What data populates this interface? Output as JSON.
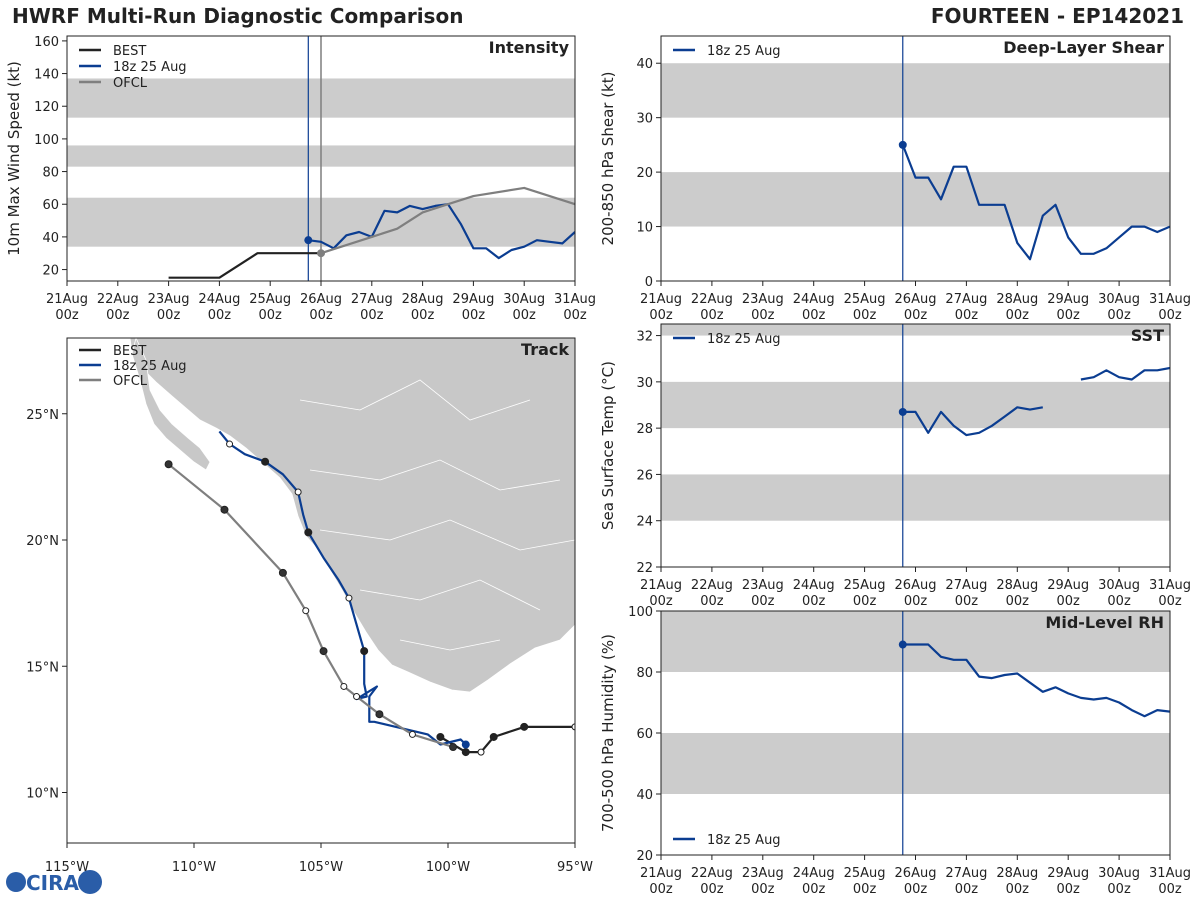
{
  "header": {
    "title": "HWRF Multi-Run Diagnostic Comparison",
    "storm": "FOURTEEN - EP142021"
  },
  "colors": {
    "best": "#222222",
    "run": "#0b3d91",
    "ofcl": "#7f7f7f",
    "band": "#cccccc",
    "land": "#c8c8c8"
  },
  "logo": {
    "text": "CIRA"
  },
  "time_ticks": [
    "21Aug\n00z",
    "22Aug\n00z",
    "23Aug\n00z",
    "24Aug\n00z",
    "25Aug\n00z",
    "26Aug\n00z",
    "27Aug\n00z",
    "28Aug\n00z",
    "29Aug\n00z",
    "30Aug\n00z",
    "31Aug\n00z"
  ],
  "chart_data": [
    {
      "id": "intensity",
      "type": "line",
      "title": "Intensity",
      "ylabel": "10m Max Wind Speed (kt)",
      "xlim": [
        0,
        10
      ],
      "ylim": [
        13,
        163
      ],
      "yticks": [
        20,
        40,
        60,
        80,
        100,
        120,
        140,
        160
      ],
      "bands": [
        [
          34,
          64
        ],
        [
          83,
          96
        ],
        [
          113,
          137
        ]
      ],
      "init_line": 4.75,
      "ofcl_init_line": 5.0,
      "legend": "top-left",
      "series": [
        {
          "name": "BEST",
          "color": "#222222",
          "x": [
            2,
            3,
            3.75,
            5
          ],
          "y": [
            15,
            15,
            30,
            30
          ]
        },
        {
          "name": "18z 25 Aug",
          "color": "#0b3d91",
          "marker_first": true,
          "x": [
            4.75,
            5,
            5.25,
            5.5,
            5.75,
            6,
            6.25,
            6.5,
            6.75,
            7,
            7.25,
            7.5,
            7.75,
            8,
            8.25,
            8.5,
            8.75,
            9,
            9.25,
            9.5,
            9.75,
            10
          ],
          "y": [
            38,
            37,
            33,
            41,
            43,
            40,
            56,
            55,
            59,
            57,
            59,
            60,
            48,
            33,
            33,
            27,
            32,
            34,
            38,
            37,
            36,
            43
          ]
        },
        {
          "name": "OFCL",
          "color": "#7f7f7f",
          "marker_first": true,
          "x": [
            5,
            5.5,
            6,
            6.5,
            7,
            7.5,
            8,
            9,
            10
          ],
          "y": [
            30,
            35,
            40,
            45,
            55,
            60,
            65,
            70,
            60
          ]
        }
      ]
    },
    {
      "id": "shear",
      "type": "line",
      "title": "Deep-Layer Shear",
      "ylabel": "200-850 hPa Shear (kt)",
      "xlim": [
        0,
        10
      ],
      "ylim": [
        0,
        45
      ],
      "yticks": [
        0,
        10,
        20,
        30,
        40
      ],
      "bands": [
        [
          10,
          20
        ],
        [
          30,
          40
        ]
      ],
      "init_line": 4.75,
      "legend": "top-left",
      "series": [
        {
          "name": "18z 25 Aug",
          "color": "#0b3d91",
          "marker_first": true,
          "x": [
            4.75,
            5,
            5.25,
            5.5,
            5.75,
            6,
            6.25,
            6.5,
            6.75,
            7,
            7.25,
            7.5,
            7.75,
            8,
            8.25,
            8.5,
            8.75,
            9,
            9.25,
            9.5,
            9.75,
            10
          ],
          "y": [
            25,
            19,
            19,
            15,
            21,
            21,
            14,
            14,
            14,
            7,
            4,
            12,
            14,
            8,
            5,
            5,
            6,
            8,
            10,
            10,
            9,
            10
          ]
        }
      ]
    },
    {
      "id": "sst",
      "type": "line",
      "title": "SST",
      "ylabel": "Sea Surface Temp (°C)",
      "xlim": [
        0,
        10
      ],
      "ylim": [
        22,
        32.5
      ],
      "yticks": [
        22,
        24,
        26,
        28,
        30,
        32
      ],
      "bands": [
        [
          24,
          26
        ],
        [
          28,
          30
        ],
        [
          32,
          32.5
        ]
      ],
      "init_line": 4.75,
      "legend": "top-left",
      "series": [
        {
          "name": "18z 25 Aug",
          "color": "#0b3d91",
          "marker_first": true,
          "x": [
            4.75,
            5,
            5.25,
            5.5,
            5.75,
            6,
            6.25,
            6.5,
            6.75,
            7,
            7.25,
            7.5,
            null,
            8.25,
            8.5,
            8.75,
            9,
            9.25,
            9.5,
            9.75,
            10
          ],
          "y": [
            28.7,
            28.7,
            27.8,
            28.7,
            28.1,
            27.7,
            27.8,
            28.1,
            28.5,
            28.9,
            28.8,
            28.9,
            null,
            30.1,
            30.2,
            30.5,
            30.2,
            30.1,
            30.5,
            30.5,
            30.6
          ]
        }
      ]
    },
    {
      "id": "rh",
      "type": "line",
      "title": "Mid-Level RH",
      "ylabel": "700-500 hPa Humidity (%)",
      "xlim": [
        0,
        10
      ],
      "ylim": [
        20,
        100
      ],
      "yticks": [
        20,
        40,
        60,
        80,
        100
      ],
      "bands": [
        [
          40,
          60
        ],
        [
          80,
          100
        ]
      ],
      "init_line": 4.75,
      "legend": "bottom-left",
      "series": [
        {
          "name": "18z 25 Aug",
          "color": "#0b3d91",
          "marker_first": true,
          "x": [
            4.75,
            5,
            5.25,
            5.5,
            5.75,
            6,
            6.25,
            6.5,
            6.75,
            7,
            7.25,
            7.5,
            7.75,
            8,
            8.25,
            8.5,
            8.75,
            9,
            9.25,
            9.5,
            9.75,
            10
          ],
          "y": [
            89,
            89,
            89,
            85,
            84,
            84,
            78.5,
            78,
            79,
            79.5,
            76.5,
            73.5,
            75,
            73,
            71.5,
            71,
            71.5,
            70,
            67.5,
            65.5,
            67.5,
            67
          ]
        }
      ]
    },
    {
      "id": "track",
      "type": "scatter",
      "title": "Track",
      "xlim": [
        -115,
        -95
      ],
      "ylim": [
        8,
        28
      ],
      "xticks": [
        -115,
        -110,
        -105,
        -100,
        -95
      ],
      "xtick_labels": [
        "115°W",
        "110°W",
        "105°W",
        "100°W",
        "95°W"
      ],
      "yticks": [
        10,
        15,
        20,
        25
      ],
      "ytick_labels": [
        "10°N",
        "15°N",
        "20°N",
        "25°N"
      ],
      "legend": "top-left",
      "series": [
        {
          "name": "BEST",
          "color": "#222222",
          "x": [
            -95,
            -97,
            -98.2,
            -98.7,
            -99.3,
            -100.3
          ],
          "y": [
            12.6,
            12.6,
            12.2,
            11.6,
            11.6,
            12.2
          ],
          "open": [
            true,
            false,
            false,
            true,
            false,
            false
          ]
        },
        {
          "name": "18z 25 Aug",
          "color": "#0b3d91",
          "x": [
            -99.3,
            -99.5,
            -99.9,
            -100.3,
            -100.8,
            -102.9,
            -103.1,
            -103.1,
            -102.8,
            -103.6,
            -103.2,
            -103.3,
            -103.3,
            -103.9,
            -104.3,
            -104.9,
            -105.5,
            -105.7,
            -105.9,
            -106.5,
            -107.2,
            -108.0,
            -108.6,
            -109.0
          ],
          "y": [
            11.9,
            12.1,
            12.0,
            11.9,
            12.3,
            12.8,
            12.8,
            13.8,
            14.2,
            13.7,
            13.8,
            14.3,
            15.6,
            17.7,
            18.4,
            19.3,
            20.3,
            21.0,
            21.9,
            22.6,
            23.1,
            23.4,
            23.8,
            24.3
          ],
          "markers": [
            0,
            0,
            0,
            0,
            0,
            0,
            0,
            0,
            0,
            0,
            0,
            0,
            1,
            2,
            0,
            0,
            1,
            0,
            2,
            0,
            1,
            0,
            2,
            0
          ]
        },
        {
          "name": "OFCL",
          "color": "#7f7f7f",
          "x": [
            -99.8,
            -101.4,
            -102.7,
            -103.6,
            -104.1,
            -104.9,
            -105.6,
            -106.5,
            -108.8,
            -111.0
          ],
          "y": [
            11.8,
            12.3,
            13.1,
            13.8,
            14.2,
            15.6,
            17.2,
            18.7,
            21.2,
            23.0
          ],
          "open": [
            false,
            true,
            false,
            true,
            true,
            false,
            true,
            false,
            false,
            false
          ]
        }
      ]
    }
  ]
}
